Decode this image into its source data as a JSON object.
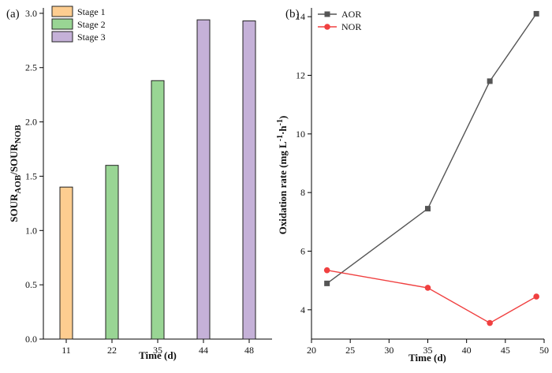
{
  "chart_data": [
    {
      "panel_label": "(a)",
      "type": "bar",
      "xlabel": "Time (d)",
      "ylabel": {
        "main1": "SOUR",
        "sub1": "AOB",
        "main2": "/SOUR",
        "sub2": "NOB"
      },
      "categories": [
        "11",
        "22",
        "35",
        "44",
        "48"
      ],
      "values": [
        1.4,
        1.6,
        2.38,
        2.94,
        2.93
      ],
      "stage_of_bar": [
        0,
        1,
        1,
        2,
        2
      ],
      "ylim": [
        0,
        3.05
      ],
      "yticks": [
        0.0,
        0.5,
        1.0,
        1.5,
        2.0,
        2.5,
        3.0
      ],
      "ytick_labels": [
        "0.0",
        "0.5",
        "1.0",
        "1.5",
        "2.0",
        "2.5",
        "3.0"
      ],
      "legend": {
        "placement": "top-left",
        "entries": [
          {
            "name": "Stage 1",
            "color": "#fdcd90"
          },
          {
            "name": "Stage 2",
            "color": "#99d594"
          },
          {
            "name": "Stage 3",
            "color": "#c5b1d8"
          }
        ]
      },
      "grid": false
    },
    {
      "panel_label": "(b)",
      "type": "line",
      "xlabel": "Time (d)",
      "ylabel": {
        "pre": "Oxidation rate (mg L",
        "sup1": "-1",
        "mid": "·h",
        "sup2": "-1",
        "post": ")"
      },
      "xlim": [
        20,
        50
      ],
      "ylim": [
        3.0,
        14.3
      ],
      "xticks": [
        20,
        25,
        30,
        35,
        40,
        45,
        50
      ],
      "yticks": [
        4,
        6,
        8,
        10,
        12,
        14
      ],
      "series": [
        {
          "name": "AOR",
          "color": "#555555",
          "marker": "square",
          "x": [
            22,
            35,
            43,
            49
          ],
          "y": [
            4.9,
            7.45,
            11.8,
            14.1
          ]
        },
        {
          "name": "NOR",
          "color": "#f04040",
          "marker": "circle",
          "x": [
            22,
            35,
            43,
            49
          ],
          "y": [
            5.35,
            4.75,
            3.55,
            4.45
          ]
        }
      ],
      "legend": {
        "placement": "top-left"
      },
      "grid": false
    }
  ]
}
